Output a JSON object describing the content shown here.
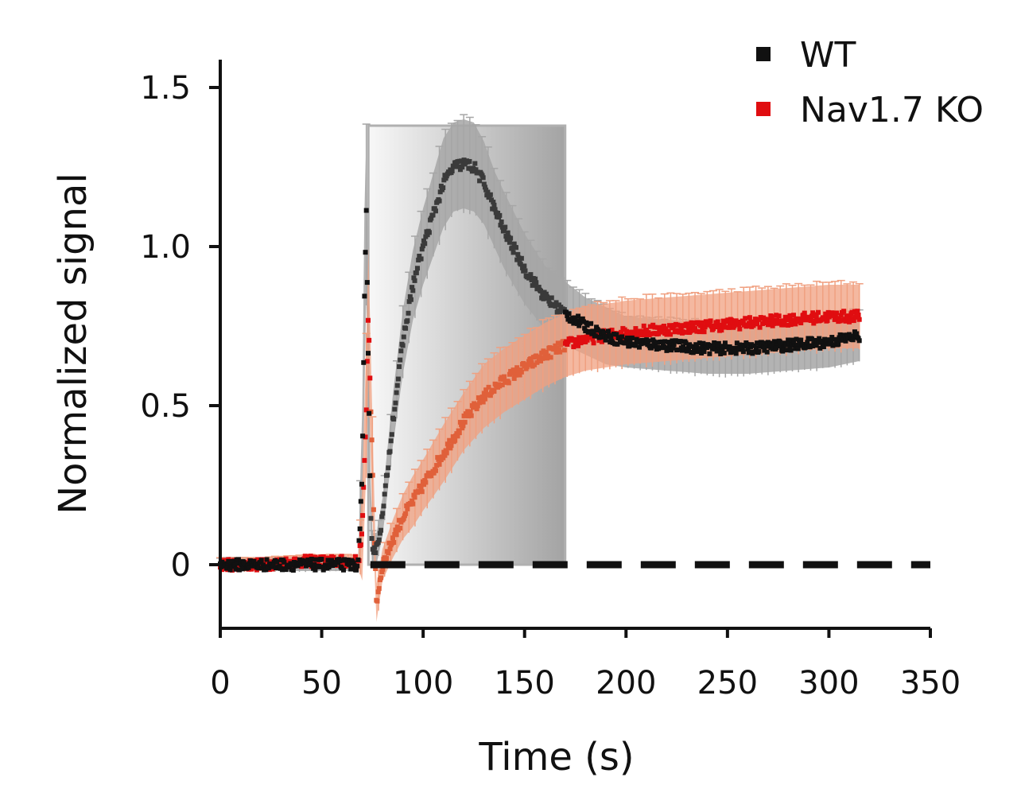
{
  "chart_data": {
    "type": "scatter",
    "title": "",
    "xlabel": "Time (s)",
    "ylabel": "Normalized signal",
    "xlim": [
      0,
      350
    ],
    "ylim": [
      -0.2,
      1.6
    ],
    "xticks": [
      {
        "value": 0,
        "label": "0"
      },
      {
        "value": 50,
        "label": "50"
      },
      {
        "value": 100,
        "label": "100"
      },
      {
        "value": 150,
        "label": "150"
      },
      {
        "value": 200,
        "label": "200"
      },
      {
        "value": 250,
        "label": "250"
      },
      {
        "value": 300,
        "label": "300"
      },
      {
        "value": 350,
        "label": "350"
      }
    ],
    "yticks": [
      {
        "value": 0,
        "label": "0"
      },
      {
        "value": 0.5,
        "label": "0.5"
      },
      {
        "value": 1.0,
        "label": "1.0"
      },
      {
        "value": 1.5,
        "label": "1.5"
      }
    ],
    "stimulus_window": {
      "start": 73,
      "end": 170,
      "ymax": 1.38
    },
    "baseline": {
      "y": 0,
      "style": "dashed"
    },
    "legend_position": "top-right",
    "series": [
      {
        "name": "WT",
        "color": "#111111",
        "error_color": "#a6a6a6",
        "x": [
          0,
          20,
          40,
          68,
          70,
          71,
          72,
          73,
          74,
          75,
          77,
          80,
          85,
          90,
          95,
          100,
          105,
          110,
          115,
          120,
          125,
          130,
          135,
          140,
          150,
          160,
          170,
          180,
          190,
          200,
          220,
          240,
          260,
          280,
          300,
          315
        ],
        "y": [
          0,
          0,
          0,
          0,
          0.3,
          0.8,
          1.1,
          0.6,
          0.2,
          0.05,
          0.05,
          0.15,
          0.45,
          0.7,
          0.88,
          1.0,
          1.1,
          1.2,
          1.25,
          1.26,
          1.25,
          1.2,
          1.12,
          1.05,
          0.93,
          0.84,
          0.79,
          0.75,
          0.72,
          0.7,
          0.69,
          0.68,
          0.68,
          0.69,
          0.7,
          0.72
        ],
        "err": [
          0.02,
          0.02,
          0.02,
          0.02,
          0.2,
          0.3,
          0.25,
          0.2,
          0.1,
          0.05,
          0.05,
          0.06,
          0.08,
          0.1,
          0.11,
          0.12,
          0.13,
          0.14,
          0.14,
          0.14,
          0.14,
          0.13,
          0.12,
          0.12,
          0.11,
          0.1,
          0.1,
          0.09,
          0.09,
          0.08,
          0.08,
          0.08,
          0.08,
          0.08,
          0.08,
          0.08
        ]
      },
      {
        "name": "Nav1.7 KO",
        "color": "#e00d10",
        "error_color": "#f0a080",
        "x": [
          0,
          20,
          40,
          68,
          70,
          72,
          73,
          75,
          77,
          80,
          85,
          90,
          95,
          100,
          110,
          120,
          130,
          140,
          150,
          160,
          170,
          180,
          190,
          200,
          220,
          240,
          260,
          280,
          300,
          315
        ],
        "y": [
          0,
          0,
          0.01,
          0.01,
          0.1,
          0.5,
          0.8,
          0.3,
          -0.12,
          0.0,
          0.08,
          0.15,
          0.2,
          0.25,
          0.35,
          0.45,
          0.53,
          0.58,
          0.62,
          0.66,
          0.69,
          0.71,
          0.72,
          0.73,
          0.74,
          0.75,
          0.76,
          0.77,
          0.78,
          0.78
        ],
        "err": [
          0.02,
          0.02,
          0.02,
          0.02,
          0.15,
          0.2,
          0.2,
          0.15,
          0.06,
          0.05,
          0.06,
          0.07,
          0.08,
          0.08,
          0.09,
          0.09,
          0.1,
          0.1,
          0.1,
          0.1,
          0.1,
          0.1,
          0.1,
          0.1,
          0.1,
          0.1,
          0.1,
          0.1,
          0.1,
          0.1
        ]
      }
    ]
  }
}
